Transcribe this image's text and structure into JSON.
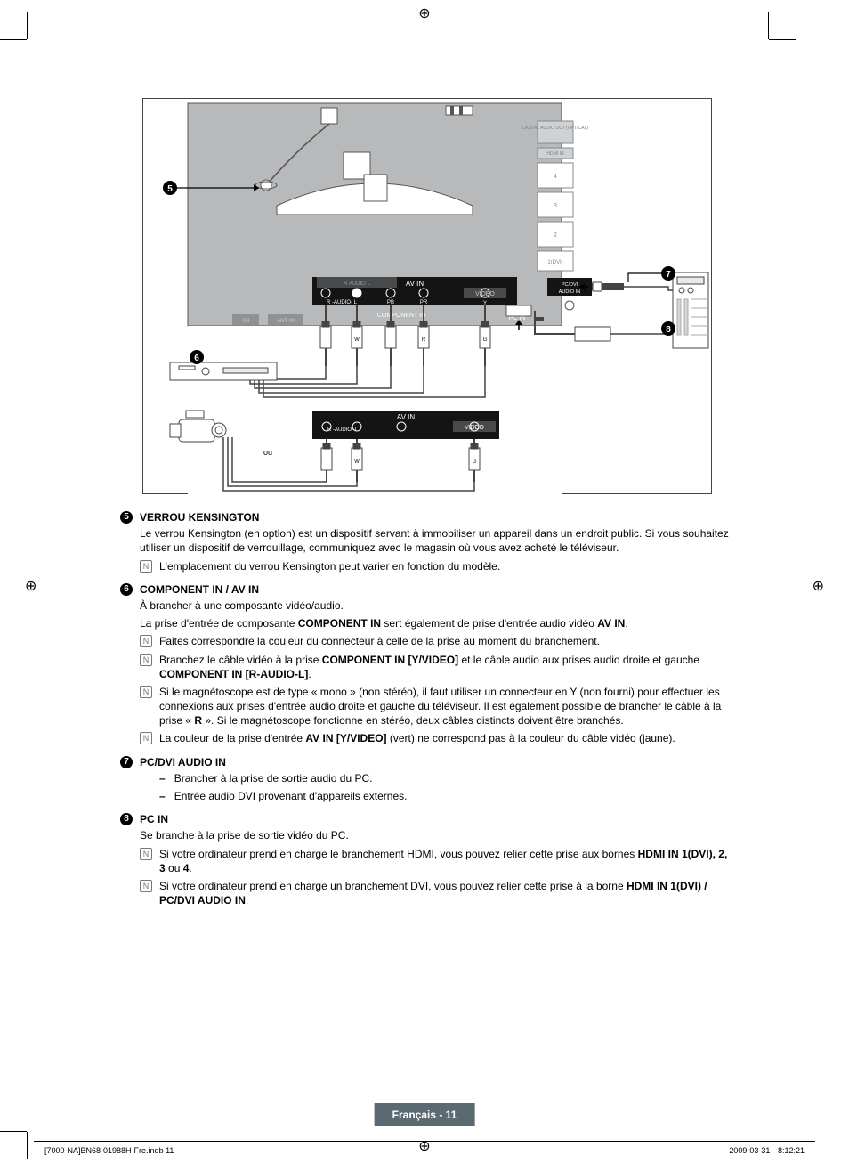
{
  "diagram": {
    "bg": "#b7b9bb",
    "dark": "#141414",
    "side_labels": [
      "DIGITAL AUDIO OUT (OPTICAL)",
      "HDMI IN",
      "4",
      "3",
      "2",
      "1(DVI)"
    ],
    "av_in": "AV IN",
    "video": "VIDEO",
    "pcdvi": "PC/DVI AUDIO IN",
    "pc_in": "PC IN",
    "r_audio_l": "R -AUDIO- L",
    "component_in": "COMPONENT IN",
    "pb": "PB",
    "pr": "PR",
    "y": "Y",
    "ou": "ou",
    "w": "W",
    "r": "R",
    "g": "G",
    "an": "AN",
    "ant_in": "ANT IN",
    "markers": {
      "5": "5",
      "6": "6",
      "7": "7",
      "8": "8"
    }
  },
  "sections": [
    {
      "num": "5",
      "title": "VERROU KENSINGTON",
      "paras": [
        "Le verrou Kensington (en option) est un dispositif servant à immobiliser un appareil dans un endroit public. Si vous souhaitez utiliser un dispositif de verrouillage, communiquez avec le magasin où vous avez acheté le téléviseur."
      ],
      "notes": [
        "L'emplacement du verrou Kensington peut varier en fonction du modèle."
      ]
    },
    {
      "num": "6",
      "title": "COMPONENT IN / AV IN",
      "paras": [
        "À brancher à une composante vidéo/audio.",
        {
          "html": "La prise d'entrée de composante <b>COMPONENT IN</b> sert également de prise d'entrée audio vidéo <b>AV IN</b>."
        }
      ],
      "notes": [
        "Faites correspondre la couleur du connecteur à celle de la prise au moment du branchement.",
        {
          "html": "Branchez le câble vidéo à la prise <b>COMPONENT IN [Y/VIDEO]</b> et le câble audio aux prises audio droite et gauche <b>COMPONENT IN [R-AUDIO-L]</b>."
        },
        {
          "html": "Si le magnétoscope est de type « mono » (non stéréo), il faut utiliser un connecteur en Y (non fourni) pour effectuer les connexions aux prises d'entrée audio droite et gauche du téléviseur. Il est également possible de brancher le câble à la prise « <b>R</b> ». Si le magnétoscope fonctionne en stéréo, deux câbles distincts doivent être branchés."
        },
        {
          "html": "La couleur de la prise d'entrée <b>AV IN [Y/VIDEO]</b> (vert) ne correspond pas à la couleur du câble vidéo (jaune)."
        }
      ]
    },
    {
      "num": "7",
      "title": "PC/DVI AUDIO IN",
      "dashes": [
        "Brancher à la prise de sortie audio du PC.",
        "Entrée audio DVI provenant d'appareils externes."
      ]
    },
    {
      "num": "8",
      "title": "PC IN",
      "paras": [
        "Se branche à la prise de sortie vidéo du PC."
      ],
      "notes": [
        {
          "html": "Si votre ordinateur prend en charge le branchement HDMI, vous pouvez relier cette prise aux bornes <b>HDMI IN 1(DVI), 2, 3</b> ou <b>4</b>."
        },
        {
          "html": "Si votre ordinateur prend en charge un branchement DVI, vous pouvez relier cette prise à la borne <b>HDMI IN 1(DVI) / PC/DVI AUDIO IN</b>."
        }
      ]
    }
  ],
  "footer": {
    "badge": "Français - 11",
    "left": "[7000-NA]BN68-01988H-Fre.indb   11",
    "right": "2009-03-31      8:12:21"
  }
}
